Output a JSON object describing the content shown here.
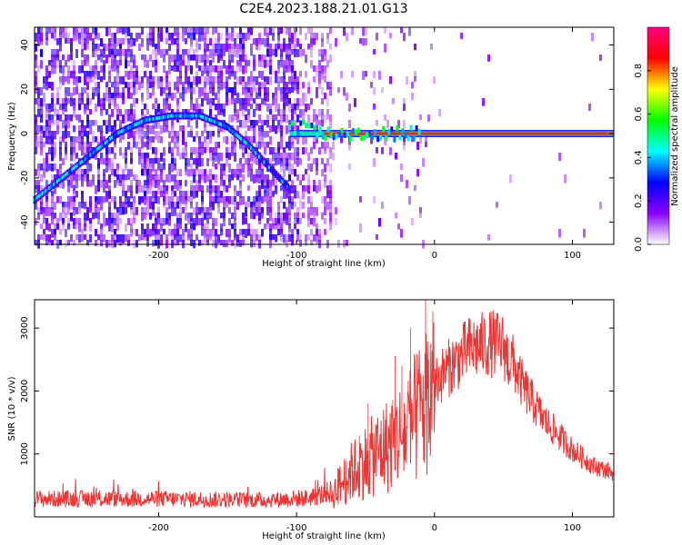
{
  "chart_data": [
    {
      "type": "heatmap",
      "title": "C2E4.2023.188.21.01.G13",
      "xlabel": "Height of straight line (km)",
      "ylabel": "Frequency (Hz)",
      "xlim": [
        -290,
        130
      ],
      "ylim": [
        -50,
        48
      ],
      "x_ticks": [
        {
          "value": -200,
          "label": "-200"
        },
        {
          "value": -100,
          "label": "-100"
        },
        {
          "value": 0,
          "label": "0"
        },
        {
          "value": 100,
          "label": "100"
        }
      ],
      "y_ticks": [
        {
          "value": -40,
          "label": "-40"
        },
        {
          "value": -20,
          "label": "-20"
        },
        {
          "value": 0,
          "label": "0"
        },
        {
          "value": 20,
          "label": "20"
        },
        {
          "value": 40,
          "label": "40"
        }
      ],
      "trace": [
        [
          -290,
          -30
        ],
        [
          -270,
          -20
        ],
        [
          -250,
          -10
        ],
        [
          -230,
          0
        ],
        [
          -210,
          6
        ],
        [
          -190,
          8
        ],
        [
          -170,
          8
        ],
        [
          -150,
          3
        ],
        [
          -135,
          -5
        ],
        [
          -120,
          -15
        ],
        [
          -105,
          -25
        ]
      ],
      "signal_line": {
        "x_start": -105,
        "x_end": 130,
        "frequency": 0
      },
      "colorbar": {
        "label": "Normalized spectral amplitude",
        "range": [
          0,
          1
        ],
        "ticks": [
          {
            "value": 0.0,
            "label": "0.0"
          },
          {
            "value": 0.2,
            "label": "0.2"
          },
          {
            "value": 0.4,
            "label": "0.4"
          },
          {
            "value": 0.6,
            "label": "0.6"
          },
          {
            "value": 0.8,
            "label": "0.8"
          }
        ],
        "colors": [
          "#ffffff",
          "#8a00ff",
          "#0000ff",
          "#00ffff",
          "#00ff00",
          "#ffff00",
          "#ff0000",
          "#ff0080"
        ]
      }
    },
    {
      "type": "line",
      "xlabel": "Height of straight line (km)",
      "ylabel": "SNR (10 * v/v)",
      "xlim": [
        -290,
        130
      ],
      "ylim": [
        0,
        3450
      ],
      "x_ticks": [
        {
          "value": -200,
          "label": "-200"
        },
        {
          "value": -100,
          "label": "-100"
        },
        {
          "value": 0,
          "label": "0"
        },
        {
          "value": 100,
          "label": "100"
        }
      ],
      "y_ticks": [
        {
          "value": 1000,
          "label": "1000"
        },
        {
          "value": 2000,
          "label": "2000"
        },
        {
          "value": 3000,
          "label": "3000"
        }
      ],
      "color": "#ee3333",
      "envelope": [
        [
          -290,
          300
        ],
        [
          -200,
          300
        ],
        [
          -120,
          280
        ],
        [
          -90,
          320
        ],
        [
          -75,
          420
        ],
        [
          -60,
          900
        ],
        [
          -40,
          1300
        ],
        [
          -20,
          1700
        ],
        [
          -5,
          2300
        ],
        [
          10,
          2700
        ],
        [
          25,
          3050
        ],
        [
          40,
          3150
        ],
        [
          50,
          3100
        ],
        [
          55,
          2750
        ],
        [
          65,
          2200
        ],
        [
          80,
          1650
        ],
        [
          100,
          1150
        ],
        [
          115,
          880
        ],
        [
          130,
          750
        ]
      ]
    }
  ]
}
